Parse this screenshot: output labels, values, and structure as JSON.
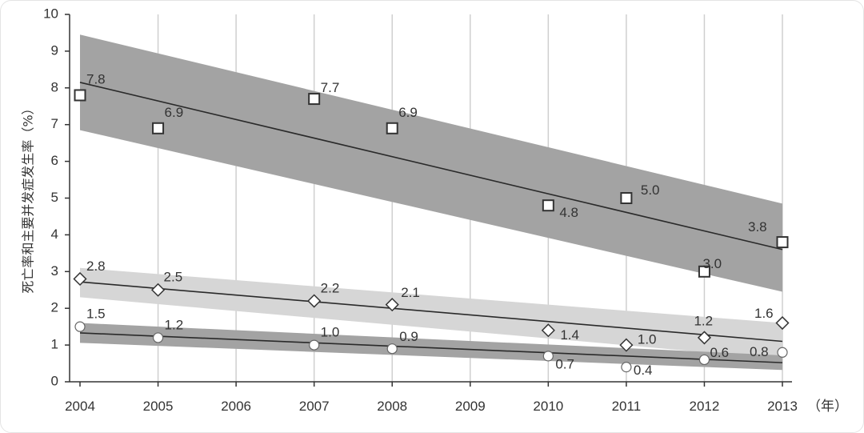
{
  "chart_data": {
    "type": "line",
    "ylabel": "死亡率和主要并发症发生率（%）",
    "x_unit": "（年）",
    "ylim": [
      0,
      10
    ],
    "xlim": [
      2004,
      2013
    ],
    "yticks": [
      "0",
      "1",
      "2",
      "3",
      "4",
      "5",
      "6",
      "7",
      "8",
      "9",
      "10"
    ],
    "xticks": [
      "2004",
      "2005",
      "2006",
      "2007",
      "2008",
      "2009",
      "2010",
      "2011",
      "2012",
      "2013"
    ],
    "grid": "vertical",
    "colors": {
      "band_dark": "#a3a3a3",
      "band_light": "#d6d6d6",
      "line": "#2a2a2a",
      "marker": "#333333"
    },
    "series": [
      {
        "marker": "square",
        "band": "dark",
        "points": [
          {
            "x": 2004,
            "y": 7.8,
            "label": "7.8"
          },
          {
            "x": 2005,
            "y": 6.9,
            "label": "6.9"
          },
          {
            "x": 2007,
            "y": 7.7,
            "label": "7.7"
          },
          {
            "x": 2008,
            "y": 6.9,
            "label": "6.9"
          },
          {
            "x": 2010,
            "y": 4.8,
            "label": "4.8"
          },
          {
            "x": 2011,
            "y": 5.0,
            "label": "5.0"
          },
          {
            "x": 2012,
            "y": 3.0,
            "label": "3.0"
          },
          {
            "x": 2013,
            "y": 3.8,
            "label": "3.8"
          }
        ],
        "trend": [
          [
            2004,
            8.15
          ],
          [
            2013,
            3.6
          ]
        ],
        "band_upper": [
          [
            2004,
            9.45
          ],
          [
            2013,
            4.85
          ]
        ],
        "band_lower": [
          [
            2004,
            6.85
          ],
          [
            2013,
            2.45
          ]
        ]
      },
      {
        "marker": "diamond",
        "band": "light",
        "points": [
          {
            "x": 2004,
            "y": 2.8,
            "label": "2.8"
          },
          {
            "x": 2005,
            "y": 2.5,
            "label": "2.5"
          },
          {
            "x": 2007,
            "y": 2.2,
            "label": "2.2"
          },
          {
            "x": 2008,
            "y": 2.1,
            "label": "2.1"
          },
          {
            "x": 2010,
            "y": 1.4,
            "label": "1.4"
          },
          {
            "x": 2011,
            "y": 1.0,
            "label": "1.0"
          },
          {
            "x": 2012,
            "y": 1.2,
            "label": "1.2"
          },
          {
            "x": 2013,
            "y": 1.6,
            "label": "1.6"
          }
        ],
        "trend": [
          [
            2004,
            2.72
          ],
          [
            2013,
            1.1
          ]
        ],
        "band_upper": [
          [
            2004,
            3.1
          ],
          [
            2013,
            1.6
          ]
        ],
        "band_lower": [
          [
            2004,
            2.3
          ],
          [
            2013,
            0.62
          ]
        ]
      },
      {
        "marker": "circle",
        "band": "dark",
        "points": [
          {
            "x": 2004,
            "y": 1.5,
            "label": "1.5"
          },
          {
            "x": 2005,
            "y": 1.2,
            "label": "1.2"
          },
          {
            "x": 2007,
            "y": 1.0,
            "label": "1.0"
          },
          {
            "x": 2008,
            "y": 0.9,
            "label": "0.9"
          },
          {
            "x": 2010,
            "y": 0.7,
            "label": "0.7"
          },
          {
            "x": 2011,
            "y": 0.4,
            "label": "0.4"
          },
          {
            "x": 2012,
            "y": 0.6,
            "label": "0.6"
          },
          {
            "x": 2013,
            "y": 0.8,
            "label": "0.8"
          }
        ],
        "trend": [
          [
            2004,
            1.33
          ],
          [
            2013,
            0.52
          ]
        ],
        "band_upper": [
          [
            2004,
            1.6
          ],
          [
            2013,
            0.72
          ]
        ],
        "band_lower": [
          [
            2004,
            1.06
          ],
          [
            2013,
            0.32
          ]
        ]
      }
    ]
  }
}
